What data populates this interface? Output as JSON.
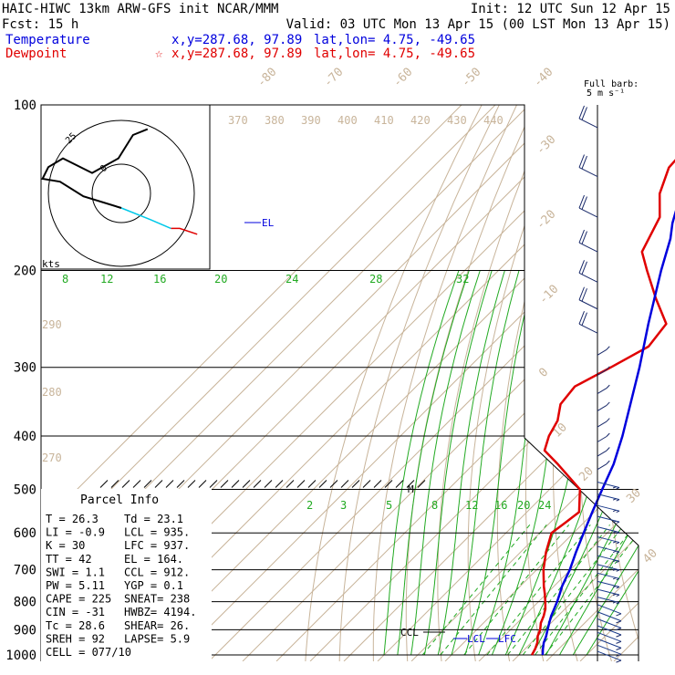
{
  "header": {
    "line1_left": "HAIC-HIWC 13km ARW-GFS init   NCAR/MMM",
    "line1_right": "Init: 12 UTC Sun 12 Apr 15",
    "line2_left": "Fcst:   15 h",
    "line2_right": "Valid: 03 UTC Mon 13 Apr 15 (00 LST Mon 13 Apr 15)",
    "temp_label": "Temperature",
    "temp_xy": "x,y=287.68, 97.89",
    "temp_latlon": "lat,lon=  4.75, -49.65",
    "dew_label": "Dewpoint",
    "dew_star": "☆",
    "dew_xy": "x,y=287.68, 97.89",
    "dew_latlon": "lat,lon=  4.75, -49.65"
  },
  "barb_legend": {
    "line1": "Full barb:",
    "line2": "5 m s⁻¹"
  },
  "hodograph": {
    "kts_label": "kts",
    "ring_outer_label": "25",
    "ring_inner_label": "0"
  },
  "parcel_info": {
    "title": "Parcel Info",
    "rows": [
      [
        "T  =   26.3",
        "Td =  23.1"
      ],
      [
        "LI =   -0.9",
        "LCL =  935."
      ],
      [
        "K  =     30",
        "LFC =  937."
      ],
      [
        "TT =     42",
        "EL  =  164."
      ],
      [
        "SWI =   1.1",
        "CCL =  912."
      ],
      [
        "PW =   5.11",
        "YGP =   0.1"
      ],
      [
        "CAPE =  225",
        "SNEAT= 238"
      ],
      [
        "CIN =   -31",
        "HWBZ= 4194."
      ],
      [
        "Tc =   28.6",
        "SHEAR=  26."
      ],
      [
        "SREH =   92",
        "LAPSE=  5.9"
      ],
      [
        "CELL = 077/10",
        ""
      ]
    ]
  },
  "annotations": {
    "el": "EL",
    "lcl": "LCL",
    "lfc": "LFC",
    "ccl": "CCL",
    "m": "M"
  },
  "colors": {
    "temperature": "#0000dd",
    "dewpoint": "#e00000",
    "hodo_low": "#00c8e8",
    "isotherm": "#c8b49a",
    "mixing": "#22aa22"
  },
  "chart_data": {
    "type": "line",
    "title": "",
    "ylabel": "",
    "xlabel": "",
    "pressure_levels": [
      100,
      200,
      300,
      400,
      500,
      600,
      700,
      800,
      900,
      1000
    ],
    "ylim": [
      1000,
      100
    ],
    "isotherm_labels": [
      "-80",
      "-70",
      "-60",
      "-50",
      "-40",
      "-30",
      "-20",
      "-10",
      "0",
      "10",
      "20",
      "30",
      "40"
    ],
    "theta_labels": [
      "370",
      "380",
      "390",
      "400",
      "410",
      "420",
      "430",
      "440"
    ],
    "theta_labels_low": [
      "290",
      "280",
      "270"
    ],
    "mixing_labels_upper": [
      "8",
      "12",
      "16",
      "20",
      "24",
      "28",
      "32"
    ],
    "mixing_labels_lower": [
      "2",
      "3",
      "5",
      "8",
      "12",
      "16",
      "20",
      "24"
    ],
    "series": [
      {
        "name": "Temperature",
        "points": [
          [
            1000,
            27.0
          ],
          [
            975,
            25.3
          ],
          [
            950,
            23.7
          ],
          [
            935,
            23.0
          ],
          [
            925,
            22.5
          ],
          [
            900,
            21.0
          ],
          [
            875,
            19.5
          ],
          [
            850,
            18.0
          ],
          [
            825,
            16.8
          ],
          [
            800,
            15.5
          ],
          [
            775,
            14.0
          ],
          [
            750,
            12.4
          ],
          [
            700,
            9.8
          ],
          [
            650,
            6.4
          ],
          [
            600,
            3.0
          ],
          [
            550,
            -0.6
          ],
          [
            500,
            -4.4
          ],
          [
            450,
            -8.5
          ],
          [
            400,
            -14.2
          ],
          [
            350,
            -21.3
          ],
          [
            300,
            -29.5
          ],
          [
            250,
            -39.8
          ],
          [
            200,
            -51.8
          ],
          [
            175,
            -58.5
          ],
          [
            164,
            -62.5
          ],
          [
            150,
            -67.0
          ],
          [
            125,
            -73.5
          ],
          [
            100,
            -78.0
          ]
        ]
      },
      {
        "name": "Dewpoint",
        "points": [
          [
            1000,
            23.8
          ],
          [
            975,
            23.0
          ],
          [
            950,
            21.8
          ],
          [
            925,
            20.0
          ],
          [
            900,
            18.8
          ],
          [
            875,
            17.0
          ],
          [
            850,
            15.8
          ],
          [
            825,
            14.2
          ],
          [
            800,
            12.0
          ],
          [
            775,
            9.6
          ],
          [
            750,
            7.0
          ],
          [
            700,
            2.0
          ],
          [
            650,
            -2.5
          ],
          [
            600,
            -6.5
          ],
          [
            575,
            -5.5
          ],
          [
            550,
            -4.5
          ],
          [
            500,
            -11.0
          ],
          [
            450,
            -25.0
          ],
          [
            425,
            -33.0
          ],
          [
            400,
            -36.0
          ],
          [
            375,
            -38.0
          ],
          [
            350,
            -42.0
          ],
          [
            325,
            -43.0
          ],
          [
            300,
            -38.0
          ],
          [
            275,
            -33.0
          ],
          [
            250,
            -34.5
          ],
          [
            225,
            -45.0
          ],
          [
            200,
            -56.0
          ],
          [
            185,
            -63.0
          ],
          [
            160,
            -68.0
          ],
          [
            145,
            -75.0
          ],
          [
            130,
            -80.0
          ],
          [
            115,
            -81.0
          ],
          [
            100,
            -79.0
          ]
        ]
      },
      {
        "name": "Hodograph",
        "points": [
          [
            1000,
            26,
            -14
          ],
          [
            950,
            20,
            -12
          ],
          [
            925,
            17,
            -12
          ],
          [
            900,
            10,
            -9
          ],
          [
            850,
            0,
            -5
          ],
          [
            800,
            -13,
            -1
          ],
          [
            700,
            -21,
            4
          ],
          [
            600,
            -27,
            5
          ],
          [
            500,
            -25,
            9
          ],
          [
            400,
            -20,
            12
          ],
          [
            300,
            -10,
            7
          ],
          [
            200,
            -1,
            12
          ],
          [
            150,
            4,
            20
          ],
          [
            100,
            9,
            22
          ]
        ]
      }
    ]
  }
}
